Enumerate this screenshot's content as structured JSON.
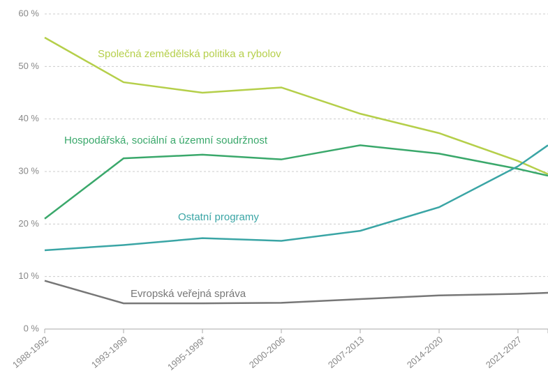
{
  "chart_data": {
    "type": "line",
    "categories": [
      "1988-1992",
      "1993-1999",
      "1995-1999*",
      "2000-2006",
      "2007-2013",
      "2014-2020",
      "2021-2027",
      null
    ],
    "series": [
      {
        "name": "Společná zemědělská politika a rybolov",
        "color": "#b5cf4a",
        "values": [
          55.5,
          47,
          45,
          46,
          41,
          37.3,
          32,
          29.5
        ]
      },
      {
        "name": "Hospodářská, sociální a územní soudržnost",
        "color": "#3aa86b",
        "values": [
          21,
          32.5,
          33.2,
          32.3,
          35,
          33.4,
          30.5,
          29.2
        ]
      },
      {
        "name": "Ostatní programy",
        "color": "#3aa5a5",
        "values": [
          15,
          16,
          17.3,
          16.8,
          18.7,
          23.2,
          31,
          35
        ]
      },
      {
        "name": "Evropská veřejná správa",
        "color": "#777777",
        "values": [
          9.2,
          4.9,
          4.9,
          5,
          5.7,
          6.4,
          6.7,
          6.9
        ]
      }
    ],
    "ylim": [
      0,
      60
    ],
    "yticks": [
      {
        "value": 0,
        "label": "0 %"
      },
      {
        "value": 10,
        "label": "10 %"
      },
      {
        "value": 20,
        "label": "20 %"
      },
      {
        "value": 30,
        "label": "30 %"
      },
      {
        "value": 40,
        "label": "40 %"
      },
      {
        "value": 50,
        "label": "50 %"
      },
      {
        "value": 60,
        "label": "60 %"
      }
    ],
    "grid": true
  }
}
